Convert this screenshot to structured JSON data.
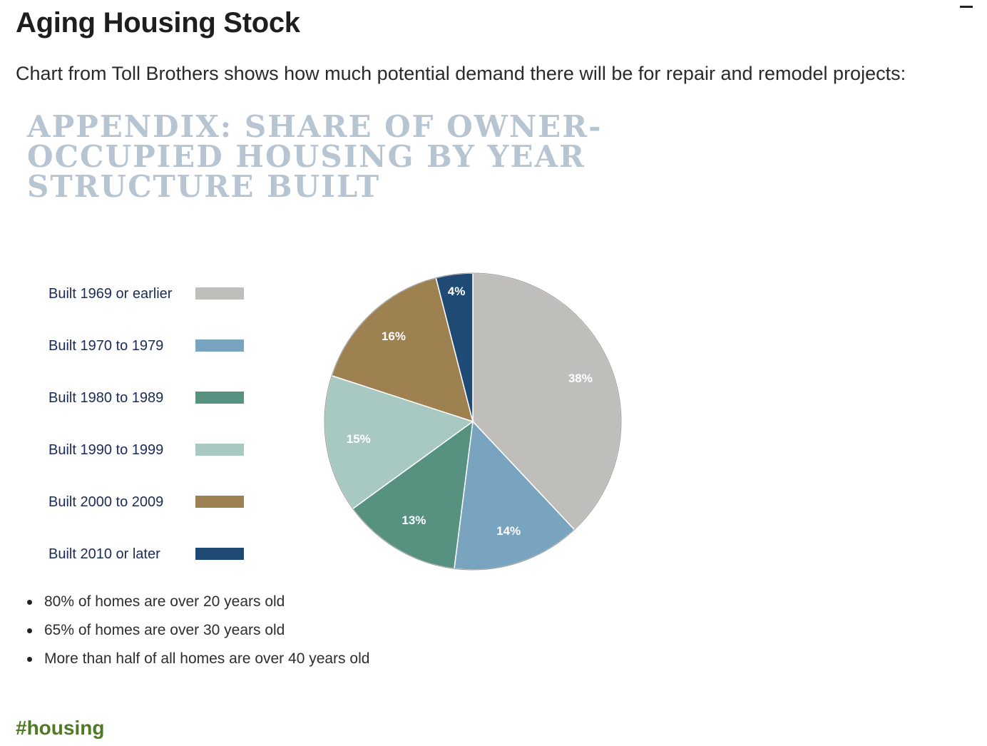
{
  "page": {
    "title": "Aging Housing Stock",
    "intro": "Chart from Toll Brothers shows how much potential demand there will be for repair and remodel projects:",
    "tag": "#housing",
    "bullets": [
      "80% of homes are over 20 years old",
      "65% of homes are over 30 years old",
      "More than half of all homes are over 40 years old"
    ]
  },
  "chart_data": {
    "type": "pie",
    "title_lines": [
      "APPENDIX: SHARE OF OWNER-",
      "OCCUPIED HOUSING BY YEAR",
      "STRUCTURE BUILT"
    ],
    "categories": [
      "Built 1969 or earlier",
      "Built 1970 to 1979",
      "Built 1980 to 1989",
      "Built 1990 to 1999",
      "Built 2000 to 2009",
      "Built 2010 or later"
    ],
    "values": [
      38,
      14,
      13,
      15,
      16,
      4
    ],
    "labels": [
      "38%",
      "14%",
      "13%",
      "15%",
      "16%",
      "4%"
    ],
    "colors": [
      "#c0bebb",
      "#78a4bf",
      "#579280",
      "#a7c9c2",
      "#9e8150",
      "#1f4a73"
    ],
    "legend_position": "left"
  }
}
